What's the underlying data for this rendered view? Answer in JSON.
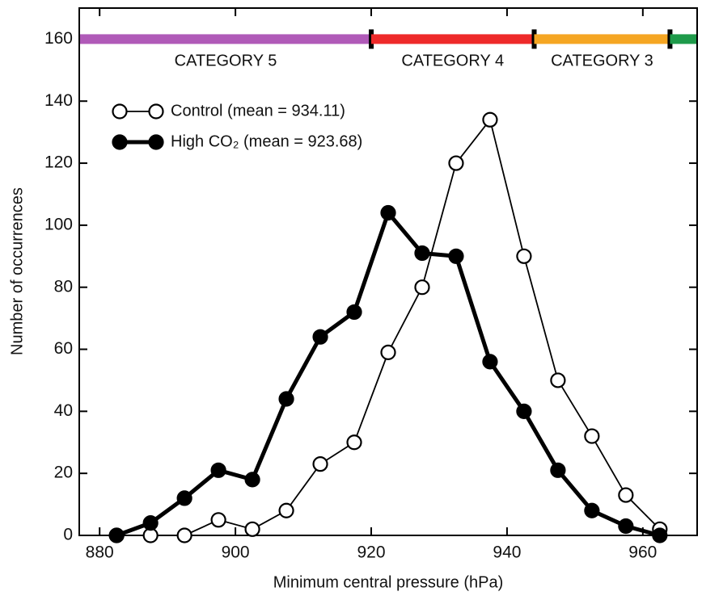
{
  "chart_data": {
    "type": "line",
    "x_label": "Minimum central pressure (hPa)",
    "y_label": "Number of occurrences",
    "x": [
      882.5,
      887.5,
      892.5,
      897.5,
      902.5,
      907.5,
      912.5,
      917.5,
      922.5,
      927.5,
      932.5,
      937.5,
      942.5,
      947.5,
      952.5,
      957.5,
      962.5
    ],
    "series": [
      {
        "name": "Control (mean = 934.11)",
        "color": "#000000",
        "filled": false,
        "values": [
          0,
          0,
          0,
          5,
          2,
          8,
          23,
          30,
          59,
          80,
          120,
          134,
          90,
          50,
          32,
          13,
          2
        ]
      },
      {
        "name": "High CO₂ (mean = 923.68)",
        "color": "#000000",
        "filled": true,
        "values": [
          0,
          4,
          12,
          21,
          18,
          44,
          64,
          72,
          104,
          91,
          90,
          56,
          40,
          21,
          8,
          3,
          0
        ]
      }
    ],
    "xlim": [
      877,
      968
    ],
    "ylim": [
      0,
      170
    ],
    "xticks": [
      880,
      900,
      920,
      940,
      960
    ],
    "yticks": [
      0,
      20,
      40,
      60,
      80,
      100,
      120,
      140,
      160
    ],
    "legend": "upper left",
    "band_y": 160,
    "bands": [
      {
        "label": "CATEGORY 5",
        "color": "#b05ab8",
        "max": 920
      },
      {
        "label": "CATEGORY 4",
        "color": "#ee2a2a",
        "min": 920,
        "max": 944
      },
      {
        "label": "CATEGORY 3",
        "color": "#f5a623",
        "min": 944,
        "max": 964
      },
      {
        "color": "#1e9a4a",
        "min": 964
      }
    ]
  }
}
